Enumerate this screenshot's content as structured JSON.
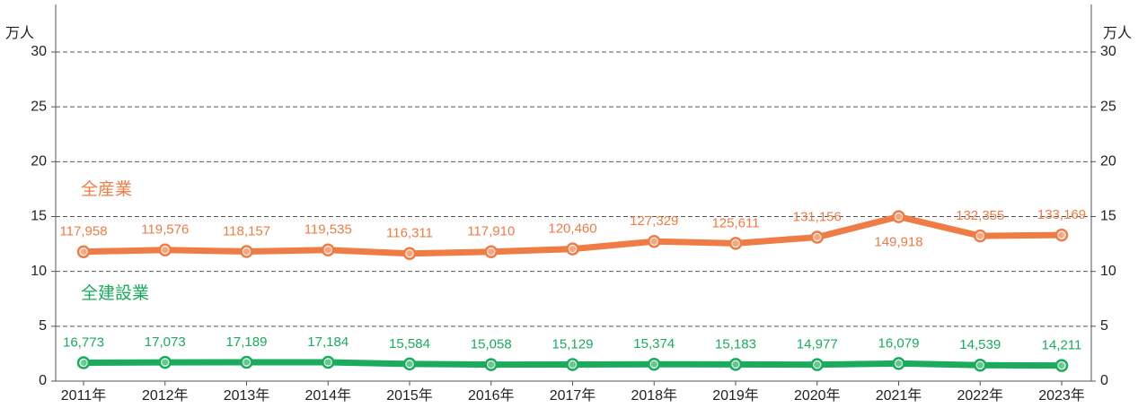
{
  "chart_data": {
    "type": "line",
    "y_unit": "万人",
    "y2_unit": "万人",
    "categories": [
      "2011年",
      "2012年",
      "2013年",
      "2014年",
      "2015年",
      "2016年",
      "2017年",
      "2018年",
      "2019年",
      "2020年",
      "2021年",
      "2022年",
      "2023年"
    ],
    "series": [
      {
        "name": "全産業",
        "color": "#f07c45",
        "values": [
          11.7958,
          11.9576,
          11.8157,
          11.9535,
          11.6311,
          11.791,
          12.046,
          12.7329,
          12.5611,
          13.1156,
          14.9918,
          13.2355,
          13.3169
        ],
        "value_labels": [
          "117,958",
          "119,576",
          "118,157",
          "119,535",
          "116,311",
          "117,910",
          "120,460",
          "127,329",
          "125,611",
          "131,156",
          "149,918",
          "132,355",
          "133,169"
        ]
      },
      {
        "name": "全建設業",
        "color": "#1aab5c",
        "values": [
          1.6773,
          1.7073,
          1.7189,
          1.7184,
          1.5584,
          1.5058,
          1.5129,
          1.5374,
          1.5183,
          1.4977,
          1.6079,
          1.4539,
          1.4211
        ],
        "value_labels": [
          "16,773",
          "17,073",
          "17,189",
          "17,184",
          "15,584",
          "15,058",
          "15,129",
          "15,374",
          "15,183",
          "14,977",
          "16,079",
          "14,539",
          "14,211"
        ]
      }
    ],
    "ylim": [
      0,
      30
    ],
    "yticks": [
      0,
      5,
      10,
      15,
      20,
      25,
      30
    ],
    "y2lim": [
      0,
      30
    ],
    "y2ticks": [
      0,
      5,
      10,
      15,
      20,
      25,
      30
    ],
    "grid": true
  }
}
